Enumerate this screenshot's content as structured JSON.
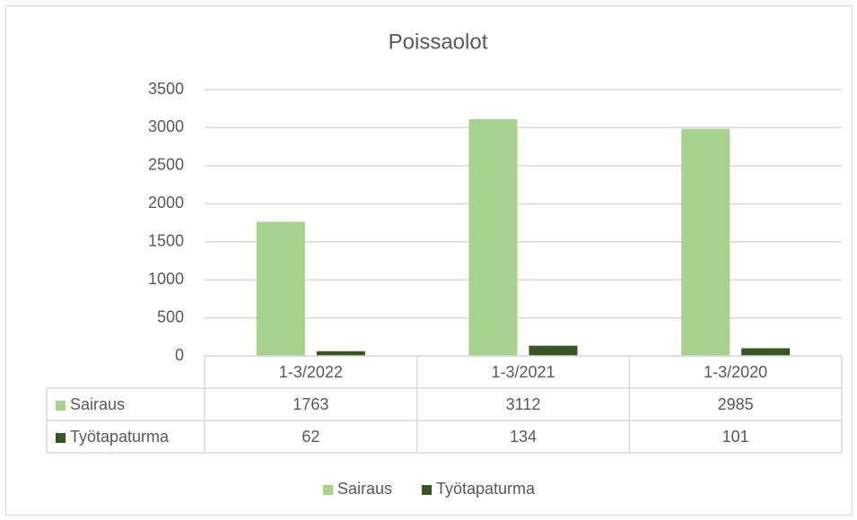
{
  "chart_data": {
    "type": "bar",
    "title": "Poissaolot",
    "categories": [
      "1-3/2022",
      "1-3/2021",
      "1-3/2020"
    ],
    "series": [
      {
        "name": "Sairaus",
        "color": "#a9d18e",
        "values": [
          1763,
          3112,
          2985
        ]
      },
      {
        "name": "Työtapaturma",
        "color": "#375623",
        "values": [
          62,
          134,
          101
        ]
      }
    ],
    "ylim": [
      0,
      3500
    ],
    "yticks": [
      0,
      500,
      1000,
      1500,
      2000,
      2500,
      3000,
      3500
    ],
    "grid": true,
    "legend": "bottom",
    "data_table": true
  }
}
